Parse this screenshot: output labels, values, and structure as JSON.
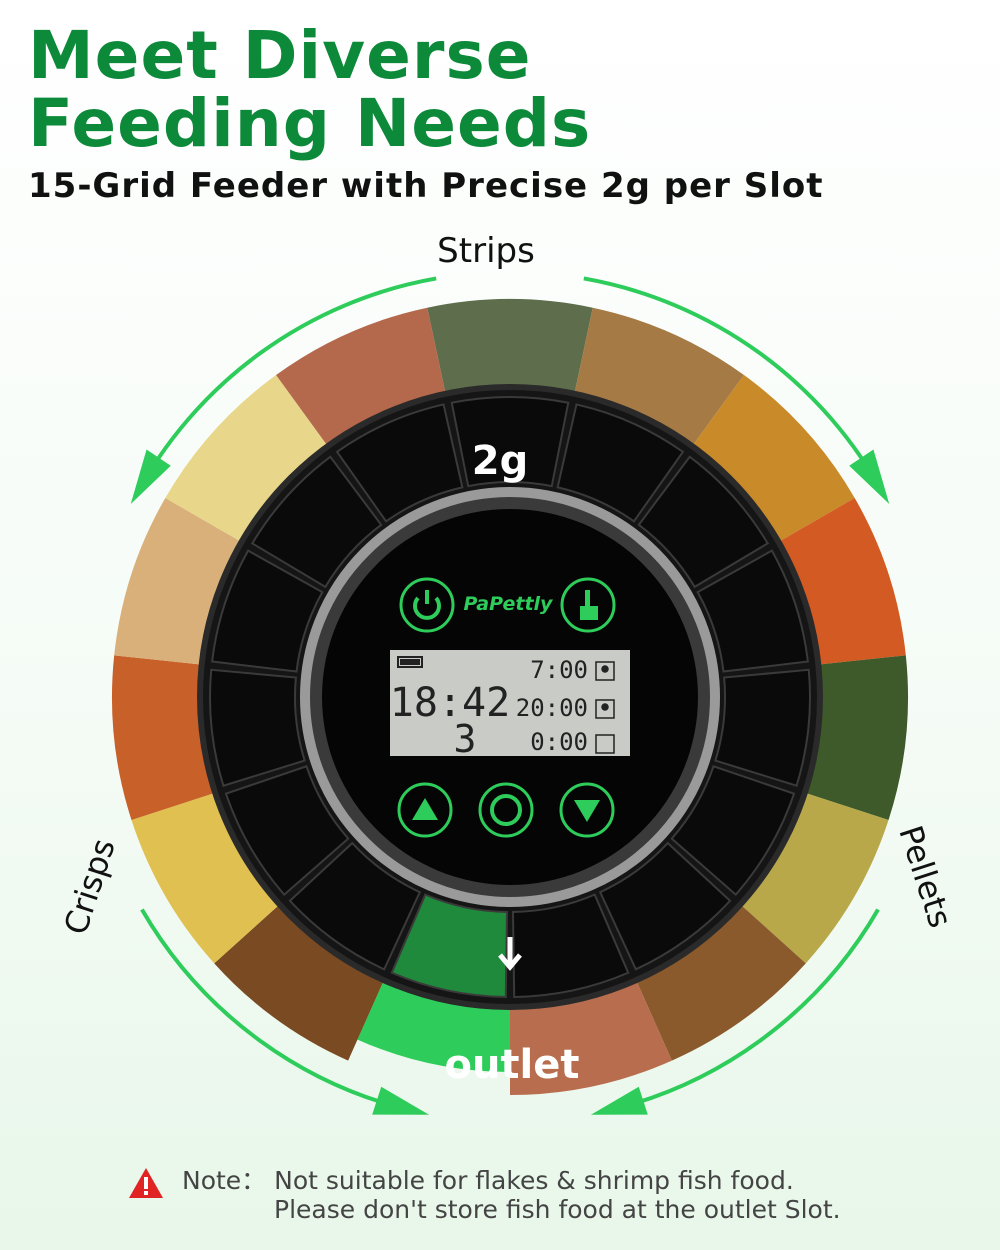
{
  "headline": {
    "line1": "Meet Diverse",
    "line2": "Feeding Needs",
    "subtitle": "15-Grid Feeder with Precise 2g per Slot"
  },
  "labels": {
    "top": "Strips",
    "left": "Crisps",
    "right": "Pellets",
    "slot_weight": "2g",
    "outlet": "outlet"
  },
  "device": {
    "brand": "PaPettly",
    "clock": "18:42",
    "day_count": "3",
    "schedules": [
      "7:00",
      "20:00",
      "0:00"
    ],
    "schedule_enabled": [
      true,
      true,
      false
    ],
    "buttons": [
      "power-icon",
      "manual-feed-icon",
      "up-icon",
      "settings-gear-icon",
      "down-icon"
    ]
  },
  "food_colors": [
    "#5e6e4c",
    "#a57a45",
    "#c98a2a",
    "#d35a22",
    "#3f5a2a",
    "#b8a84a",
    "#8b5a2c",
    "#b86e4e",
    "#2ecc5a",
    "#7a4a22",
    "#e0c050",
    "#c8602a",
    "#d9b07a",
    "#e8d68a",
    "#b4684c"
  ],
  "colors": {
    "brand_green": "#0c8a3a",
    "accent_green": "#2ecc5a",
    "lcd": "#c9cbc6",
    "dial": "#151515"
  },
  "note": {
    "label": "Note：",
    "line1": "Not suitable for flakes & shrimp fish food.",
    "line2": "Please don't store fish food at the outlet Slot."
  }
}
